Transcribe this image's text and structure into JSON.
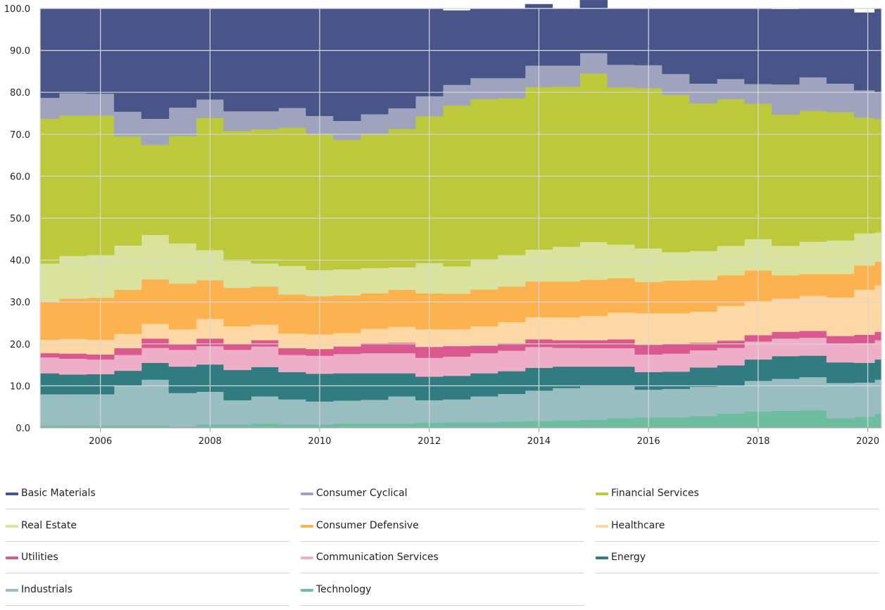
{
  "chart_data": {
    "type": "area",
    "stacked": true,
    "normalized_percent": true,
    "ylim": [
      0,
      100
    ],
    "y_ticks": [
      0,
      10,
      20,
      30,
      40,
      50,
      60,
      70,
      80,
      90,
      100
    ],
    "y_tick_labels": [
      "0.0",
      "10.0",
      "20.0",
      "30.0",
      "40.0",
      "50.0",
      "60.0",
      "70.0",
      "80.0",
      "90.0",
      "100.0"
    ],
    "xlim": [
      2004.9,
      2020.25
    ],
    "x_ticks": [
      2006,
      2008,
      2010,
      2012,
      2014,
      2016,
      2018,
      2020
    ],
    "x_tick_labels": [
      "2006",
      "2008",
      "2010",
      "2012",
      "2014",
      "2016",
      "2018",
      "2020"
    ],
    "grid": true,
    "legend_position": "bottom",
    "x": [
      2005.0,
      2005.5,
      2006.0,
      2006.5,
      2007.0,
      2007.5,
      2008.0,
      2008.5,
      2009.0,
      2009.5,
      2010.0,
      2010.5,
      2011.0,
      2011.5,
      2012.0,
      2012.5,
      2013.0,
      2013.5,
      2014.0,
      2014.5,
      2015.0,
      2015.5,
      2016.0,
      2016.5,
      2017.0,
      2017.5,
      2018.0,
      2018.5,
      2019.0,
      2019.5,
      2020.0,
      2020.25
    ],
    "series": [
      {
        "name": "Technology",
        "color": "#6dbe9e",
        "values": [
          0.5,
          0.5,
          0.5,
          0.5,
          0.5,
          0.3,
          0.8,
          0.8,
          1.0,
          0.8,
          0.8,
          1.0,
          1.0,
          1.0,
          1.2,
          1.3,
          1.3,
          1.5,
          1.6,
          1.7,
          1.9,
          2.3,
          2.5,
          2.5,
          2.8,
          3.4,
          3.9,
          4.1,
          4.2,
          2.3,
          2.6,
          3.3
        ]
      },
      {
        "name": "Industrials",
        "color": "#98bec2",
        "values": [
          7.5,
          7.5,
          7.5,
          9.5,
          11.0,
          8.0,
          7.8,
          5.8,
          6.5,
          6.0,
          5.5,
          5.5,
          5.7,
          6.5,
          5.4,
          5.5,
          6.2,
          6.6,
          7.3,
          7.8,
          8.0,
          7.6,
          6.6,
          6.8,
          7.0,
          6.7,
          7.3,
          7.6,
          7.9,
          8.4,
          8.2,
          8.2
        ]
      },
      {
        "name": "Energy",
        "color": "#317c80",
        "values": [
          5.0,
          4.7,
          4.8,
          3.6,
          4.0,
          6.3,
          6.5,
          7.2,
          7.0,
          6.5,
          6.6,
          6.5,
          6.3,
          5.5,
          5.6,
          5.6,
          5.5,
          5.4,
          5.4,
          5.1,
          4.7,
          4.7,
          4.2,
          4.1,
          4.6,
          4.8,
          5.1,
          5.4,
          5.1,
          4.9,
          4.7,
          4.8
        ]
      },
      {
        "name": "Communication Services",
        "color": "#efaec8",
        "values": [
          3.8,
          3.8,
          3.5,
          3.8,
          3.6,
          4.0,
          4.4,
          4.8,
          4.9,
          4.1,
          4.3,
          4.6,
          4.8,
          4.8,
          4.5,
          4.6,
          4.8,
          4.9,
          5.0,
          4.5,
          4.4,
          4.4,
          4.2,
          4.3,
          4.1,
          4.2,
          4.3,
          4.2,
          4.3,
          4.4,
          4.7,
          4.6
        ]
      },
      {
        "name": "Utilities",
        "color": "#d9588d",
        "values": [
          1.0,
          1.2,
          1.2,
          1.6,
          2.2,
          1.3,
          1.8,
          1.4,
          1.5,
          1.6,
          1.6,
          1.8,
          2.4,
          2.5,
          2.6,
          2.5,
          1.8,
          1.8,
          1.8,
          1.8,
          1.9,
          2.1,
          2.3,
          2.3,
          1.8,
          1.7,
          1.5,
          1.6,
          1.6,
          1.9,
          2.0,
          2.0
        ]
      },
      {
        "name": "Healthcare",
        "color": "#fdd8a4",
        "values": [
          3.2,
          3.5,
          3.5,
          3.4,
          3.5,
          3.6,
          4.7,
          4.2,
          3.7,
          3.5,
          3.5,
          3.2,
          3.4,
          3.8,
          4.2,
          4.0,
          4.6,
          5.0,
          5.3,
          5.5,
          5.8,
          6.4,
          7.5,
          7.3,
          7.4,
          8.3,
          8.1,
          7.9,
          8.4,
          9.2,
          10.7,
          11.1
        ]
      },
      {
        "name": "Consumer Defensive",
        "color": "#fbb24f",
        "values": [
          9.0,
          9.6,
          10.0,
          10.5,
          10.6,
          10.9,
          9.2,
          9.2,
          9.1,
          9.3,
          9.1,
          9.0,
          8.5,
          8.8,
          8.6,
          8.5,
          8.8,
          8.5,
          8.5,
          8.5,
          8.6,
          8.2,
          7.5,
          7.8,
          7.5,
          7.3,
          7.3,
          5.6,
          5.2,
          5.6,
          5.8,
          5.6
        ]
      },
      {
        "name": "Real Estate",
        "color": "#d9e39e",
        "values": [
          9.2,
          10.2,
          10.2,
          10.6,
          10.6,
          9.6,
          7.2,
          6.4,
          5.5,
          6.8,
          6.2,
          6.2,
          6.0,
          5.4,
          7.2,
          6.5,
          7.2,
          7.5,
          7.6,
          8.3,
          9.0,
          8.0,
          8.0,
          6.8,
          7.0,
          7.0,
          7.5,
          7.0,
          7.7,
          8.0,
          7.7,
          7.0
        ]
      },
      {
        "name": "Financial Services",
        "color": "#bbc93b",
        "values": [
          34.5,
          33.5,
          33.3,
          26.0,
          21.5,
          25.6,
          31.5,
          31.0,
          32.0,
          33.0,
          32.5,
          30.9,
          31.9,
          33.0,
          35.0,
          38.4,
          38.2,
          37.4,
          38.8,
          38.2,
          40.2,
          37.5,
          38.2,
          37.5,
          35.2,
          35.0,
          32.3,
          31.3,
          31.2,
          30.6,
          27.6,
          27.0
        ]
      },
      {
        "name": "Consumer Cyclical",
        "color": "#9fa3be",
        "values": [
          5.0,
          5.3,
          5.2,
          5.9,
          6.2,
          6.8,
          4.4,
          4.7,
          4.3,
          4.7,
          4.3,
          4.5,
          4.8,
          4.9,
          4.8,
          4.9,
          5.0,
          4.8,
          5.1,
          5.0,
          4.9,
          5.4,
          5.5,
          5.0,
          4.7,
          4.8,
          4.7,
          7.2,
          8.0,
          6.8,
          6.5,
          6.4
        ]
      },
      {
        "name": "Basic Materials",
        "color": "#475588",
        "values": [
          21.3,
          20.2,
          20.3,
          24.6,
          26.3,
          23.6,
          21.7,
          24.5,
          24.5,
          23.7,
          25.6,
          26.8,
          25.2,
          23.8,
          20.9,
          17.7,
          16.6,
          16.6,
          14.6,
          13.6,
          12.6,
          13.4,
          13.5,
          15.6,
          17.9,
          16.8,
          18.0,
          17.9,
          16.4,
          17.9,
          18.5,
          20.0
        ]
      }
    ],
    "legend": [
      [
        "Basic Materials",
        "Consumer Cyclical",
        "Financial Services"
      ],
      [
        "Real Estate",
        "Consumer Defensive",
        "Healthcare"
      ],
      [
        "Utilities",
        "Communication Services",
        "Energy"
      ],
      [
        "Industrials",
        "Technology"
      ]
    ]
  }
}
